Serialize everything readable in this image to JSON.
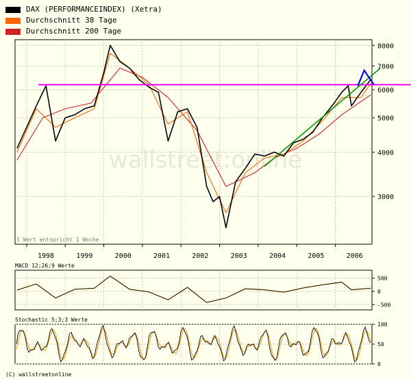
{
  "legend": [
    {
      "label": "DAX (PERFORMANCEINDEX) (Xetra)",
      "color": "#000000"
    },
    {
      "label": "Durchschnitt 38 Tage",
      "color": "#ff6600"
    },
    {
      "label": "Durchschnitt 200 Tage",
      "color": "#cc2222"
    }
  ],
  "main_note": "1 Wert entspricht 1 Woche",
  "watermark": "wallstreet:online",
  "copyright": "(C) wallstreetonline",
  "macd_label": "MACD 12;26;9 Werte",
  "stoch_label": "Stochastic 5;3;3 Werte",
  "chart_data": [
    {
      "type": "line",
      "scale": "log",
      "ylim": [
        2200,
        8300
      ],
      "y_ticks": [
        3000,
        4000,
        5000,
        6000,
        7000,
        8000
      ],
      "x_ticks": [
        "1998",
        "1999",
        "2000",
        "2001",
        "2002",
        "2003",
        "2004",
        "2005",
        "2006"
      ],
      "series": [
        {
          "name": "DAX (PERFORMANCEINDEX) (Xetra)",
          "x": [
            "1997-10",
            "1998-01",
            "1998-04",
            "1998-07",
            "1998-10",
            "1999-01",
            "1999-04",
            "1999-07",
            "1999-10",
            "2000-01",
            "2000-03",
            "2000-06",
            "2000-09",
            "2000-12",
            "2001-03",
            "2001-06",
            "2001-09",
            "2001-12",
            "2002-03",
            "2002-06",
            "2002-09",
            "2002-11",
            "2003-01",
            "2003-03",
            "2003-06",
            "2003-09",
            "2003-12",
            "2004-03",
            "2004-06",
            "2004-09",
            "2004-12",
            "2005-03",
            "2005-06",
            "2005-09",
            "2005-12",
            "2006-03",
            "2006-05",
            "2006-06",
            "2006-09",
            "2006-12"
          ],
          "values": [
            4100,
            4700,
            5400,
            6150,
            4300,
            5000,
            5100,
            5300,
            5400,
            6700,
            8000,
            7200,
            6900,
            6400,
            6100,
            5900,
            4300,
            5200,
            5300,
            4700,
            3200,
            2900,
            3000,
            2450,
            3300,
            3600,
            3950,
            3900,
            4000,
            3900,
            4250,
            4350,
            4550,
            5000,
            5400,
            5900,
            6150,
            5400,
            5900,
            6400
          ]
        },
        {
          "name": "Durchschnitt 38 Tage",
          "x": [
            "1997-10",
            "1998-04",
            "1998-10",
            "1999-04",
            "1999-10",
            "2000-03",
            "2000-09",
            "2001-03",
            "2001-09",
            "2002-03",
            "2002-09",
            "2003-03",
            "2003-09",
            "2004-03",
            "2004-09",
            "2005-03",
            "2005-09",
            "2006-03",
            "2006-09",
            "2006-12"
          ],
          "values": [
            4000,
            5300,
            4700,
            5000,
            5300,
            7600,
            6900,
            6200,
            4800,
            5200,
            3500,
            2700,
            3500,
            3850,
            3950,
            4300,
            4900,
            5700,
            5700,
            6250
          ]
        },
        {
          "name": "Durchschnitt 200 Tage",
          "x": [
            "1997-10",
            "1998-06",
            "1999-01",
            "1999-09",
            "2000-06",
            "2001-01",
            "2001-09",
            "2002-06",
            "2003-03",
            "2003-12",
            "2004-06",
            "2005-01",
            "2005-08",
            "2006-03",
            "2006-12"
          ],
          "values": [
            3800,
            5000,
            5300,
            5500,
            6900,
            6500,
            5700,
            4600,
            3200,
            3500,
            3850,
            4100,
            4500,
            5100,
            5800
          ]
        }
      ],
      "annotations": [
        {
          "label": "resistance",
          "y": 6200,
          "color": "#ff00ff"
        },
        {
          "label": "uptrend",
          "from": {
            "x": "2004-03",
            "y": 3650
          },
          "to": {
            "x": "2007-03",
            "y": 6900
          },
          "color": "#009900"
        },
        {
          "label": "projection",
          "points": [
            [
              "2006-08",
              6150
            ],
            [
              "2006-10",
              6800
            ],
            [
              "2007-01",
              6200
            ]
          ],
          "color": "#0000ff"
        }
      ]
    },
    {
      "type": "line",
      "title": "MACD 12;26;9 Werte",
      "ylim": [
        -700,
        800
      ],
      "y_ticks": [
        500,
        0,
        -500
      ],
      "series": [
        {
          "name": "MACD",
          "x": [
            "1997-10",
            "1998-04",
            "1998-10",
            "1999-04",
            "1999-10",
            "2000-03",
            "2000-09",
            "2001-03",
            "2001-09",
            "2002-03",
            "2002-09",
            "2003-03",
            "2003-09",
            "2004-03",
            "2004-09",
            "2005-03",
            "2005-09",
            "2006-03",
            "2006-06",
            "2006-12"
          ],
          "values": [
            50,
            280,
            -250,
            80,
            120,
            580,
            80,
            -20,
            -320,
            150,
            -420,
            -250,
            100,
            60,
            -30,
            130,
            250,
            350,
            60,
            120
          ]
        }
      ]
    },
    {
      "type": "line",
      "title": "Stochastic 5;3;3 Werte",
      "ylim": [
        0,
        100
      ],
      "y_ticks": [
        100,
        50,
        0
      ]
    }
  ]
}
